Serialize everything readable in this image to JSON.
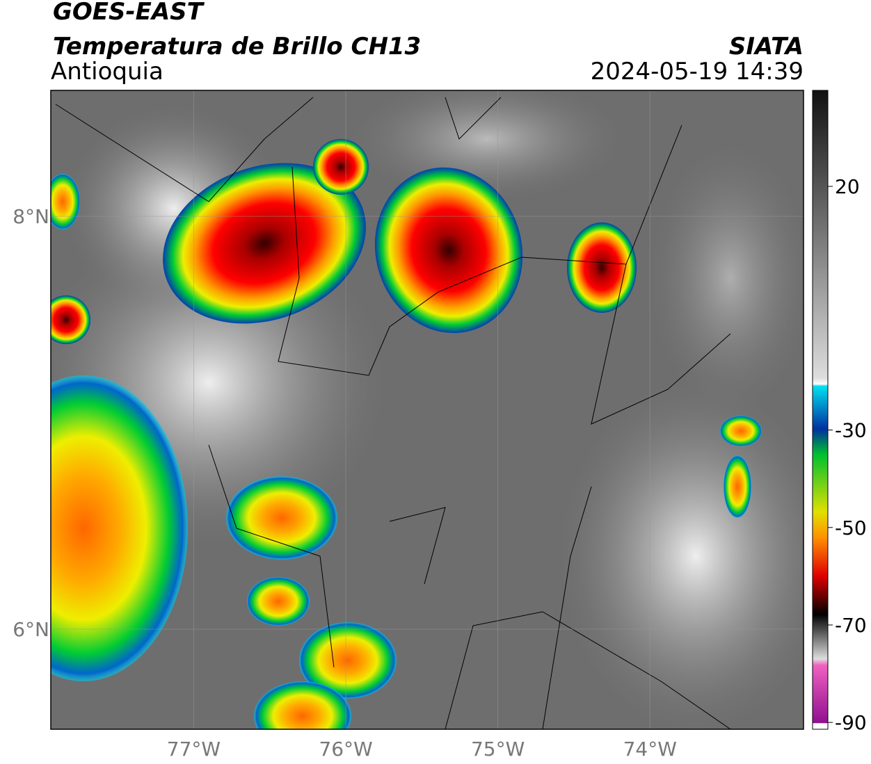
{
  "header": {
    "title": "GOES-EAST",
    "subtitle": "Temperatura de Brillo CH13",
    "region": "Antioquia",
    "source": "SIATA",
    "datetime": "2024-05-19 14:39"
  },
  "map": {
    "xlim": [
      -77.94,
      -72.99
    ],
    "ylim": [
      5.515,
      8.61
    ],
    "lat_ticks": [
      {
        "value": 8,
        "label": "8°N"
      },
      {
        "value": 6,
        "label": "6°N"
      }
    ],
    "lon_ticks": [
      {
        "value": -77,
        "label": "77°W"
      },
      {
        "value": -76,
        "label": "76°W"
      },
      {
        "value": -75,
        "label": "75°W"
      },
      {
        "value": -74,
        "label": "74°W"
      }
    ]
  },
  "colorbar": {
    "lim": [
      -91.4,
      39.7
    ],
    "ticks": [
      20,
      -30,
      -50,
      -70,
      -90
    ]
  }
}
